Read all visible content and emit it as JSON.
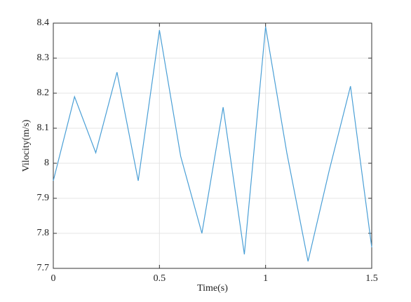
{
  "chart_data": {
    "type": "line",
    "x_label": "Time(s)",
    "y_label": "Vilocity(m/s)",
    "x": [
      0,
      0.1,
      0.2,
      0.3,
      0.4,
      0.5,
      0.6,
      0.7,
      0.8,
      0.9,
      1.0,
      1.1,
      1.2,
      1.3,
      1.4,
      1.5
    ],
    "series": [
      {
        "color": "#4a9fd6",
        "values": [
          7.95,
          8.19,
          8.03,
          8.26,
          7.95,
          8.38,
          8.02,
          7.8,
          8.16,
          7.74,
          8.39,
          8.03,
          7.72,
          7.98,
          8.22,
          7.76
        ]
      }
    ],
    "xlim": [
      0,
      1.5
    ],
    "xticks": [
      0,
      0.5,
      1,
      1.5
    ],
    "ylim": [
      7.7,
      8.4
    ],
    "yticks": [
      7.7,
      7.8,
      7.9,
      8,
      8.1,
      8.2,
      8.3,
      8.4
    ],
    "grid": true
  }
}
